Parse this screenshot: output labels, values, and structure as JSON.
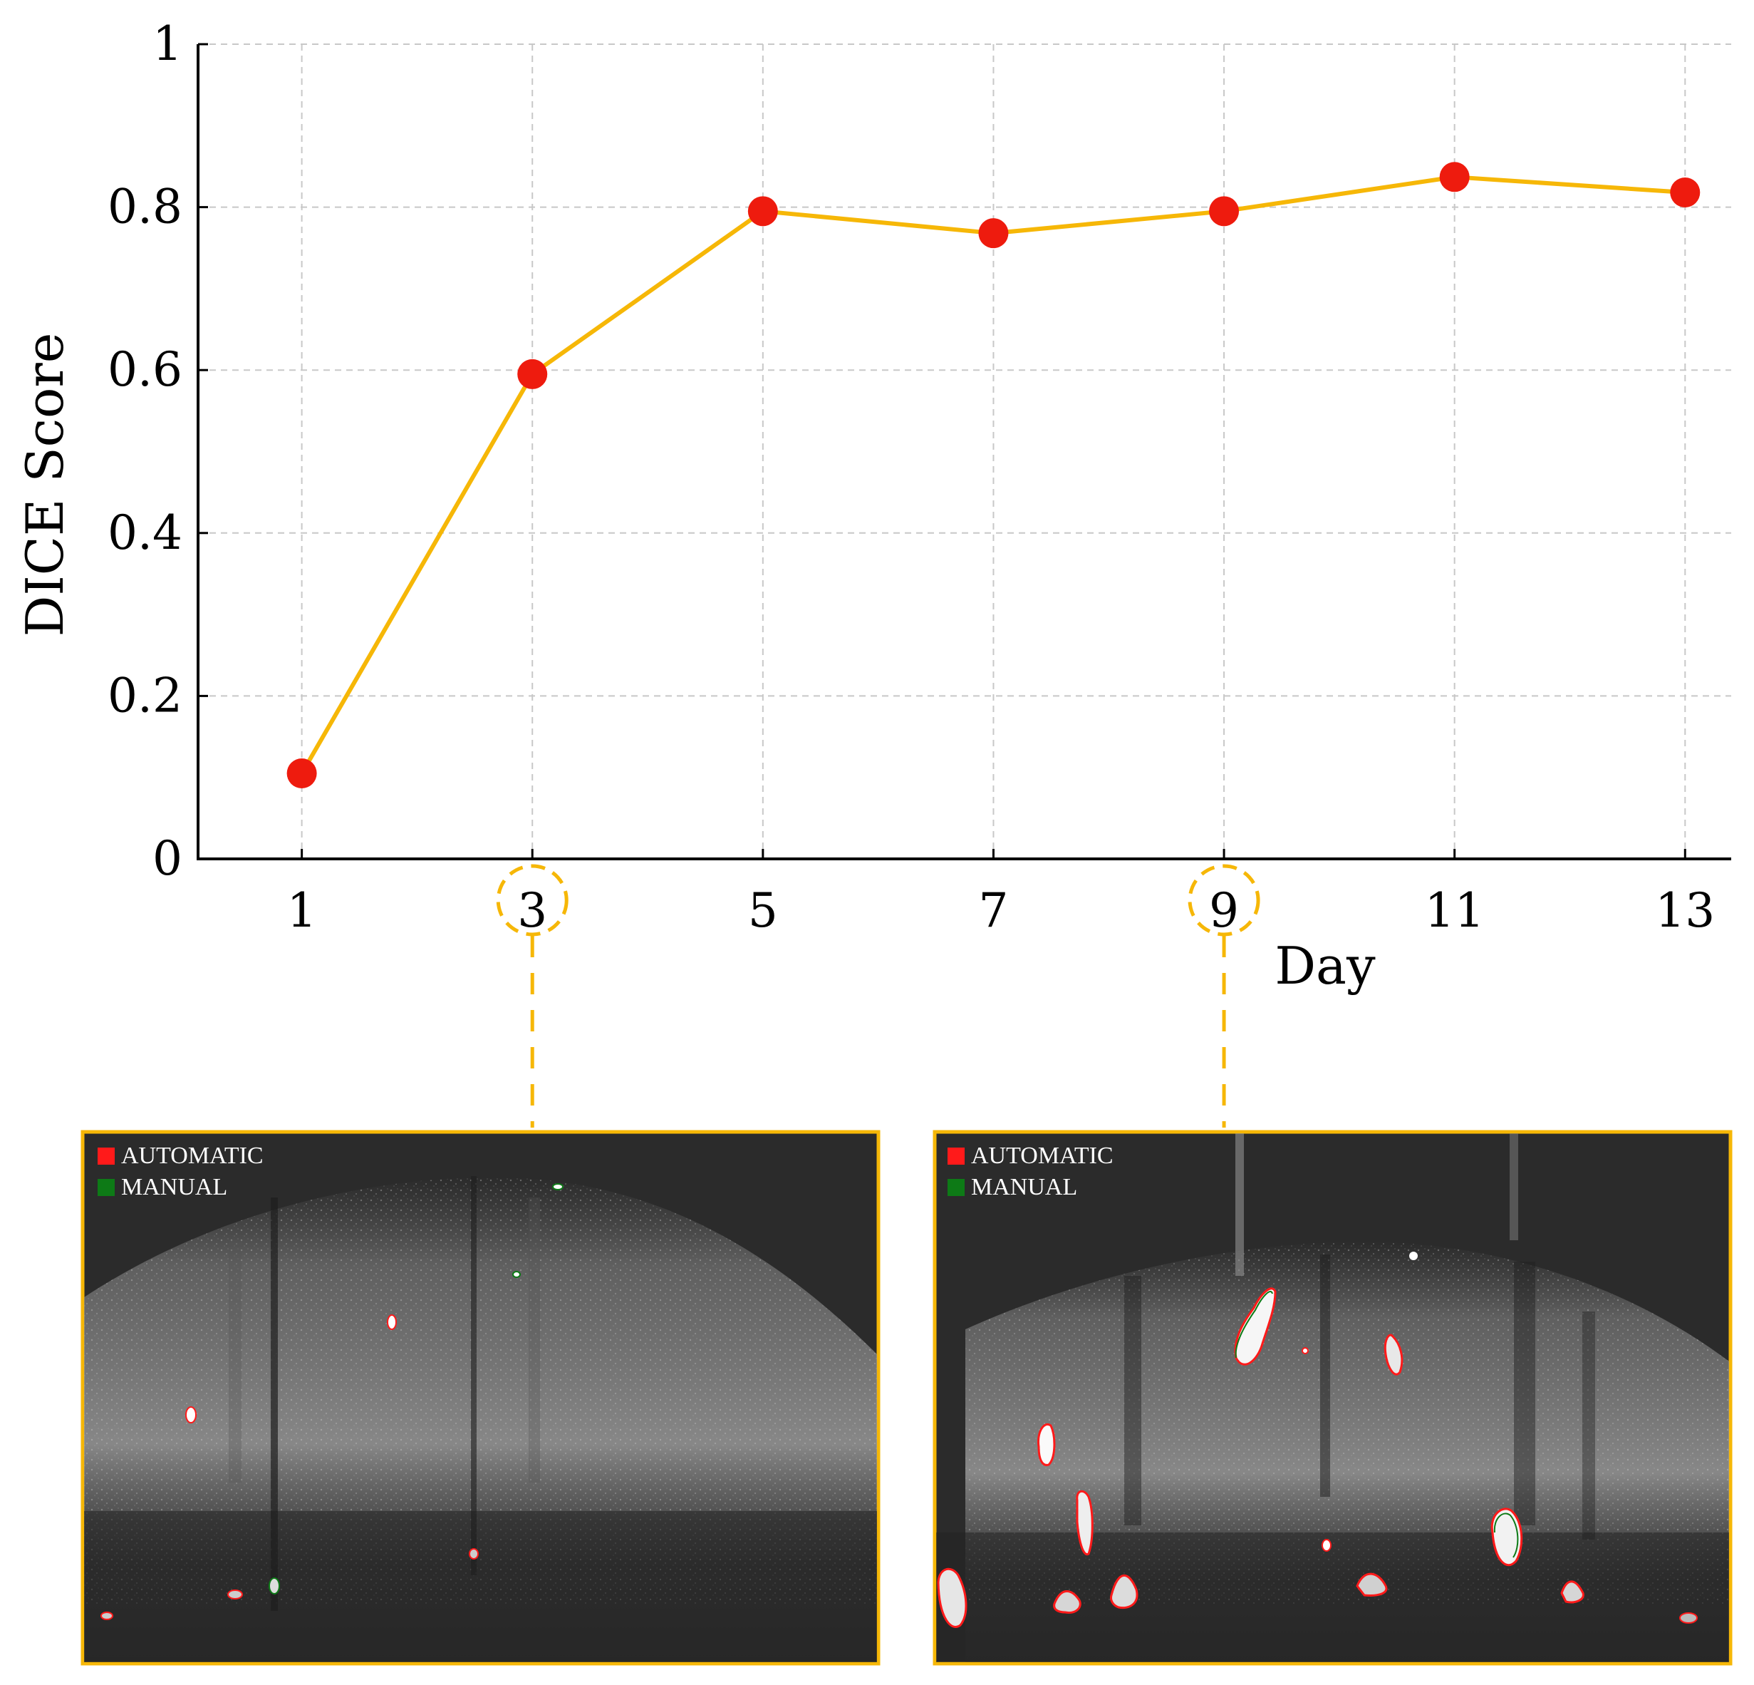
{
  "chart_data": {
    "type": "line",
    "title": "",
    "xlabel": "Day",
    "ylabel": "DICE Score",
    "x": [
      1,
      3,
      5,
      7,
      9,
      11,
      13
    ],
    "xlim": [
      0.1,
      13.4
    ],
    "ylim": [
      0,
      1
    ],
    "x_ticks": [
      "1",
      "3",
      "5",
      "7",
      "9",
      "11",
      "13"
    ],
    "y_ticks": [
      "0",
      "0.2",
      "0.4",
      "0.6",
      "0.8",
      "1"
    ],
    "series": [
      {
        "values": [
          0.105,
          0.595,
          0.795,
          0.768,
          0.795,
          0.837,
          0.818
        ]
      }
    ],
    "grid": true,
    "highlighted_days": [
      "3",
      "9"
    ],
    "colors": {
      "line": "#f6b707",
      "marker": "#ee1b0e",
      "highlight": "#f6b707",
      "grid": "#c8c8c8"
    }
  },
  "insets": [
    {
      "day": "3",
      "legend": [
        {
          "label": "AUTOMATIC",
          "color": "#ff1a1a"
        },
        {
          "label": "MANUAL",
          "color": "#0d7a16"
        }
      ]
    },
    {
      "day": "9",
      "legend": [
        {
          "label": "AUTOMATIC",
          "color": "#ff1a1a"
        },
        {
          "label": "MANUAL",
          "color": "#0d7a16"
        }
      ]
    }
  ]
}
